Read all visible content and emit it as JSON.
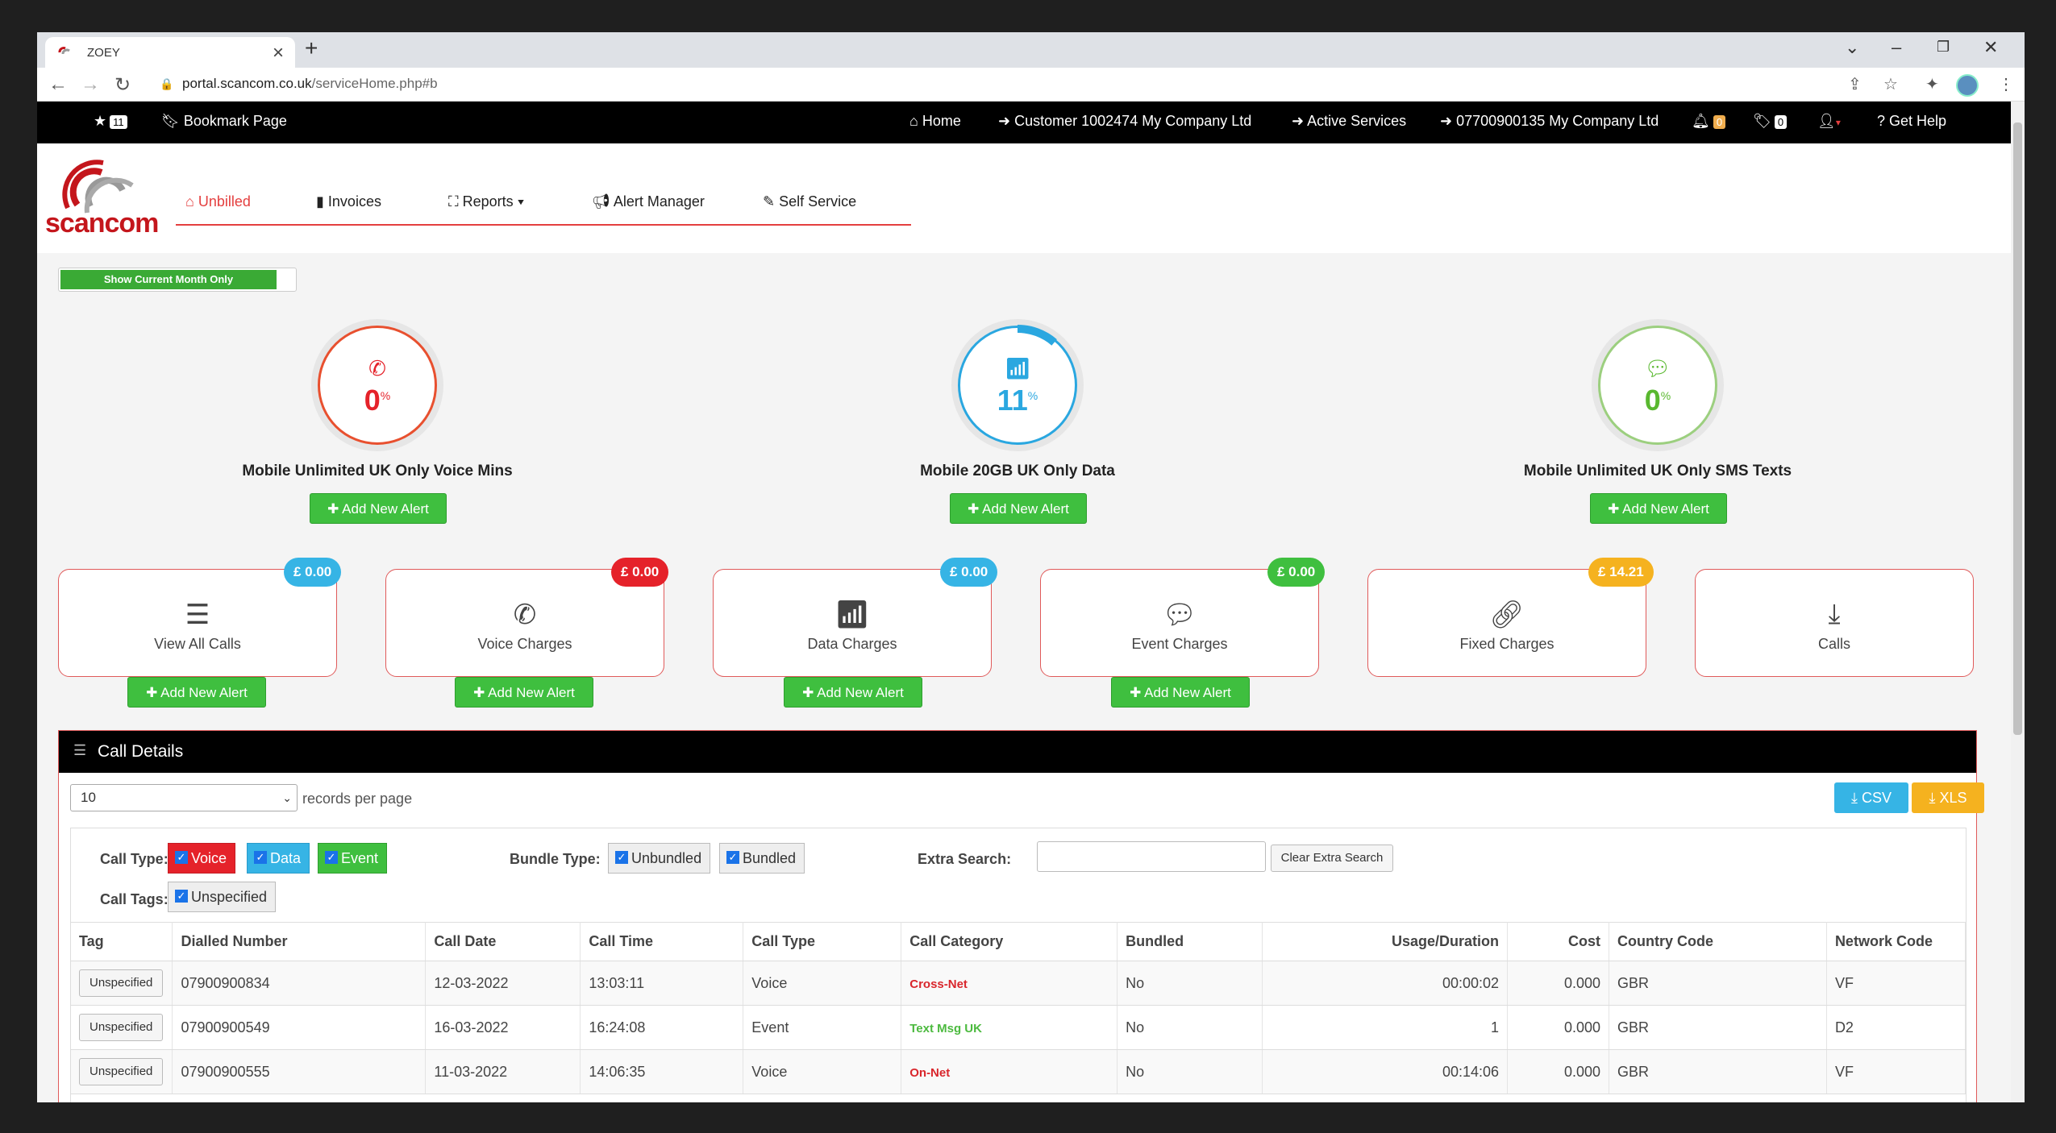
{
  "browser": {
    "tab_title": "ZOEY",
    "url_domain": "portal.scancom.co.uk",
    "url_path": "/serviceHome.php#b"
  },
  "topbar": {
    "bookmark_count": "11",
    "bookmark_page": "Bookmark Page",
    "home": "Home",
    "customer": "Customer 1002474 My Company Ltd",
    "active_services": "Active Services",
    "number": "07700900135 My Company Ltd",
    "alerts_count": "0",
    "tags_count": "0",
    "get_help": "Get Help"
  },
  "logo_text": "scancom",
  "nav": {
    "unbilled": "Unbilled",
    "invoices": "Invoices",
    "reports": "Reports",
    "alert_manager": "Alert Manager",
    "self_service": "Self Service"
  },
  "toggle_label": "Show Current Month Only",
  "gauges": [
    {
      "value": "0",
      "unit": "%",
      "title": "Mobile Unlimited UK Only Voice Mins",
      "color": "#e8502f",
      "usage": 0,
      "button": "Add New Alert"
    },
    {
      "value": "11",
      "unit": "%",
      "title": "Mobile 20GB UK Only Data",
      "color": "#2aa7e0",
      "usage": 11,
      "button": "Add New Alert"
    },
    {
      "value": "0",
      "unit": "%",
      "title": "Mobile Unlimited UK Only SMS Texts",
      "color": "#59b82f",
      "usage": 0,
      "button": "Add New Alert"
    }
  ],
  "cards": [
    {
      "label": "View All Calls",
      "badge": "£ 0.00",
      "badge_color": "#36b4e5",
      "button": "Add New Alert"
    },
    {
      "label": "Voice Charges",
      "badge": "£ 0.00",
      "badge_color": "#e5222a",
      "button": "Add New Alert"
    },
    {
      "label": "Data Charges",
      "badge": "£ 0.00",
      "badge_color": "#36b4e5",
      "button": "Add New Alert"
    },
    {
      "label": "Event Charges",
      "badge": "£ 0.00",
      "badge_color": "#3fbf3f",
      "button": "Add New Alert"
    },
    {
      "label": "Fixed Charges",
      "badge": "£ 14.21",
      "badge_color": "#f5b21f"
    },
    {
      "label": "Calls"
    }
  ],
  "panel": {
    "title": "Call Details",
    "records_value": "10",
    "records_label": "records per page",
    "csv": "CSV",
    "xls": "XLS",
    "call_type_label": "Call Type:",
    "call_types": [
      "Voice",
      "Data",
      "Event"
    ],
    "bundle_type_label": "Bundle Type:",
    "bundle_types": [
      "Unbundled",
      "Bundled"
    ],
    "extra_search_label": "Extra Search:",
    "clear_extra_search": "Clear Extra Search",
    "call_tags_label": "Call Tags:",
    "call_tag": "Unspecified"
  },
  "table": {
    "headers": [
      "Tag",
      "Dialled Number",
      "Call Date",
      "Call Time",
      "Call Type",
      "Call Category",
      "Bundled",
      "Usage/Duration",
      "Cost",
      "Country Code",
      "Network Code"
    ],
    "rows": [
      {
        "tag": "Unspecified",
        "number": "07900900834",
        "date": "12-03-2022",
        "time": "13:03:11",
        "type": "Voice",
        "category": "Cross-Net",
        "category_color": "#d9262c",
        "bundled": "No",
        "usage": "00:00:02",
        "cost": "0.000",
        "country": "GBR",
        "network": "VF"
      },
      {
        "tag": "Unspecified",
        "number": "07900900549",
        "date": "16-03-2022",
        "time": "16:24:08",
        "type": "Event",
        "category": "Text Msg UK",
        "category_color": "#4cba3f",
        "bundled": "No",
        "usage": "1",
        "cost": "0.000",
        "country": "GBR",
        "network": "D2"
      },
      {
        "tag": "Unspecified",
        "number": "07900900555",
        "date": "11-03-2022",
        "time": "14:06:35",
        "type": "Voice",
        "category": "On-Net",
        "category_color": "#d9262c",
        "bundled": "No",
        "usage": "00:14:06",
        "cost": "0.000",
        "country": "GBR",
        "network": "VF"
      }
    ]
  }
}
